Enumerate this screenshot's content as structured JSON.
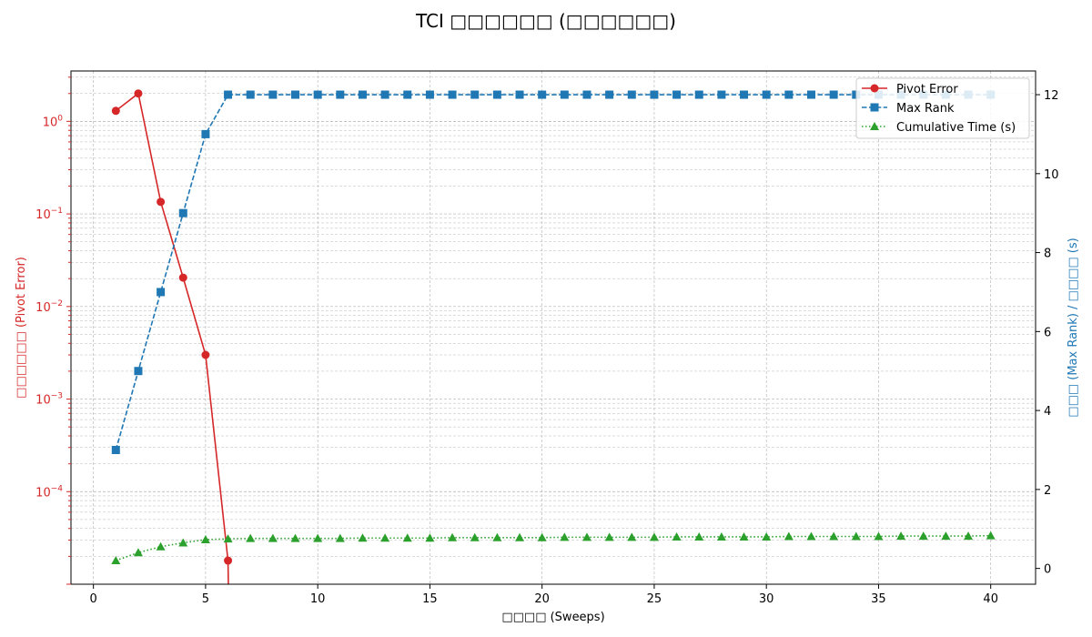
{
  "chart_data": {
    "type": "line",
    "title": "TCI □□□□□□ (□□□□□□)",
    "xlabel": "□□□□ (Sweeps)",
    "ylabel_left": "□□□□□□ (Pivot Error)",
    "ylabel_right": "□□□ (Max Rank) / □□□□ (s)",
    "xlim": [
      -1,
      42
    ],
    "xticks": [
      0,
      5,
      10,
      15,
      20,
      25,
      30,
      35,
      40
    ],
    "y_left_scale": "log",
    "y_left_lim": [
      1e-05,
      3.5
    ],
    "y_left_ticks": [
      {
        "value": 0.0001,
        "base": "10",
        "exp": "−4"
      },
      {
        "value": 0.001,
        "base": "10",
        "exp": "−3"
      },
      {
        "value": 0.01,
        "base": "10",
        "exp": "−2"
      },
      {
        "value": 0.1,
        "base": "10",
        "exp": "−1"
      },
      {
        "value": 1,
        "base": "10",
        "exp": "0"
      }
    ],
    "y_right_lim": [
      -0.4,
      12.6
    ],
    "y_right_ticks": [
      0,
      2,
      4,
      6,
      8,
      10,
      12
    ],
    "grid": true,
    "legend_position": "top-right",
    "colors": {
      "pivot_error": "#d62728",
      "max_rank": "#1f77b4",
      "cumulative_time": "#2ca02c",
      "left_axis_text": "#d62728",
      "right_axis_text": "#1f77b4"
    },
    "series": [
      {
        "name": "Pivot Error",
        "axis": "left",
        "style": "solid",
        "marker": "circle",
        "x": [
          1,
          2,
          3,
          4,
          5,
          6
        ],
        "values": [
          1.3,
          2.0,
          0.135,
          0.0205,
          0.003,
          1.8e-05
        ],
        "drops_below_axis_after_last": true
      },
      {
        "name": "Max Rank",
        "axis": "right",
        "style": "dashed",
        "marker": "square",
        "x": [
          1,
          2,
          3,
          4,
          5,
          6,
          7,
          8,
          9,
          10,
          11,
          12,
          13,
          14,
          15,
          16,
          17,
          18,
          19,
          20,
          21,
          22,
          23,
          24,
          25,
          26,
          27,
          28,
          29,
          30,
          31,
          32,
          33,
          34,
          35,
          36,
          37,
          38,
          39,
          40
        ],
        "values": [
          3,
          5,
          7,
          9,
          11,
          12,
          12,
          12,
          12,
          12,
          12,
          12,
          12,
          12,
          12,
          12,
          12,
          12,
          12,
          12,
          12,
          12,
          12,
          12,
          12,
          12,
          12,
          12,
          12,
          12,
          12,
          12,
          12,
          12,
          12,
          12,
          12,
          12,
          12,
          12
        ]
      },
      {
        "name": "Cumulative Time (s)",
        "axis": "right",
        "style": "dotted",
        "marker": "triangle",
        "x": [
          1,
          2,
          3,
          4,
          5,
          6,
          7,
          8,
          9,
          10,
          11,
          12,
          13,
          14,
          15,
          16,
          17,
          18,
          19,
          20,
          21,
          22,
          23,
          24,
          25,
          26,
          27,
          28,
          29,
          30,
          31,
          32,
          33,
          34,
          35,
          36,
          37,
          38,
          39,
          40
        ],
        "values": [
          0.2,
          0.4,
          0.55,
          0.65,
          0.73,
          0.75,
          0.76,
          0.76,
          0.76,
          0.76,
          0.76,
          0.77,
          0.77,
          0.77,
          0.77,
          0.78,
          0.78,
          0.78,
          0.78,
          0.78,
          0.79,
          0.79,
          0.79,
          0.79,
          0.79,
          0.8,
          0.8,
          0.8,
          0.8,
          0.8,
          0.81,
          0.81,
          0.81,
          0.81,
          0.81,
          0.82,
          0.82,
          0.82,
          0.82,
          0.83
        ]
      }
    ]
  }
}
